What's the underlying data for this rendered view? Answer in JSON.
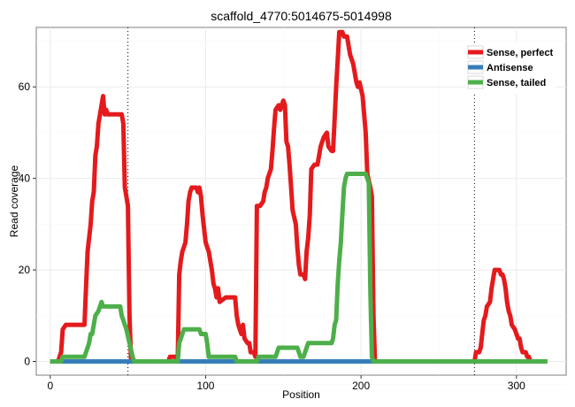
{
  "chart_data": {
    "type": "line",
    "title": "scaffold_4770:5014675-5014998",
    "xlabel": "Position",
    "ylabel": "Read coverage",
    "xlim": [
      -9,
      332
    ],
    "ylim": [
      -3,
      73
    ],
    "xticks": [
      0,
      100,
      200,
      300
    ],
    "yticks": [
      0,
      20,
      40,
      60
    ],
    "grid": true,
    "legend_position": "top-right",
    "vlines": [
      50,
      273
    ],
    "series": [
      {
        "name": "Sense, perfect",
        "color": "#e41a1c",
        "points": [
          [
            0,
            0
          ],
          [
            5,
            0
          ],
          [
            7,
            2
          ],
          [
            8,
            7
          ],
          [
            10,
            8
          ],
          [
            22,
            8
          ],
          [
            23,
            16
          ],
          [
            24,
            24
          ],
          [
            26,
            30
          ],
          [
            27,
            35
          ],
          [
            28,
            37
          ],
          [
            29,
            45
          ],
          [
            30,
            47
          ],
          [
            31,
            52
          ],
          [
            33,
            56
          ],
          [
            34,
            58
          ],
          [
            35,
            54
          ],
          [
            36,
            55
          ],
          [
            37,
            54
          ],
          [
            46,
            54
          ],
          [
            47,
            52
          ],
          [
            48,
            38
          ],
          [
            49,
            36
          ],
          [
            50,
            34
          ],
          [
            51,
            10
          ],
          [
            52,
            0
          ],
          [
            76,
            0
          ],
          [
            77,
            1
          ],
          [
            81,
            1
          ],
          [
            82,
            0
          ],
          [
            83,
            19
          ],
          [
            84,
            22
          ],
          [
            85,
            24
          ],
          [
            86,
            25
          ],
          [
            87,
            26
          ],
          [
            88,
            30
          ],
          [
            89,
            35
          ],
          [
            90,
            37
          ],
          [
            91,
            38
          ],
          [
            94,
            38
          ],
          [
            95,
            37
          ],
          [
            96,
            38
          ],
          [
            97,
            36
          ],
          [
            98,
            32
          ],
          [
            99,
            29
          ],
          [
            100,
            26
          ],
          [
            101,
            25
          ],
          [
            102,
            24
          ],
          [
            103,
            22
          ],
          [
            104,
            20
          ],
          [
            105,
            17
          ],
          [
            106,
            16
          ],
          [
            107,
            14
          ],
          [
            108,
            16
          ],
          [
            109,
            13
          ],
          [
            113,
            14
          ],
          [
            119,
            14
          ],
          [
            120,
            10
          ],
          [
            121,
            8
          ],
          [
            122,
            7
          ],
          [
            123,
            6
          ],
          [
            124,
            8
          ],
          [
            125,
            5
          ],
          [
            127,
            4
          ],
          [
            128,
            4
          ],
          [
            129,
            2
          ],
          [
            131,
            2
          ],
          [
            132,
            1
          ],
          [
            133,
            34
          ],
          [
            135,
            34
          ],
          [
            137,
            35
          ],
          [
            138,
            37
          ],
          [
            139,
            38
          ],
          [
            140,
            40
          ],
          [
            142,
            42
          ],
          [
            143,
            46
          ],
          [
            144,
            51
          ],
          [
            145,
            55
          ],
          [
            147,
            56
          ],
          [
            148,
            55
          ],
          [
            150,
            57
          ],
          [
            151,
            56
          ],
          [
            152,
            48
          ],
          [
            153,
            47
          ],
          [
            154,
            43
          ],
          [
            155,
            38
          ],
          [
            156,
            33
          ],
          [
            158,
            30
          ],
          [
            159,
            25
          ],
          [
            160,
            21
          ],
          [
            161,
            19
          ],
          [
            163,
            19
          ],
          [
            164,
            18
          ],
          [
            165,
            24
          ],
          [
            166,
            27
          ],
          [
            167,
            32
          ],
          [
            168,
            42
          ],
          [
            170,
            43
          ],
          [
            172,
            43
          ],
          [
            173,
            45
          ],
          [
            174,
            47
          ],
          [
            176,
            49
          ],
          [
            178,
            50
          ],
          [
            179,
            47
          ],
          [
            181,
            46
          ],
          [
            182,
            46
          ],
          [
            183,
            53
          ],
          [
            184,
            60
          ],
          [
            185,
            66
          ],
          [
            186,
            72
          ],
          [
            188,
            72
          ],
          [
            189,
            71
          ],
          [
            191,
            71
          ],
          [
            193,
            67
          ],
          [
            194,
            66
          ],
          [
            195,
            65
          ],
          [
            197,
            61
          ],
          [
            198,
            60
          ],
          [
            199,
            61
          ],
          [
            201,
            58
          ],
          [
            203,
            50
          ],
          [
            204,
            41
          ],
          [
            206,
            38
          ],
          [
            207,
            36
          ],
          [
            208,
            10
          ],
          [
            209,
            0
          ],
          [
            273,
            0
          ],
          [
            274,
            2
          ],
          [
            276,
            2
          ],
          [
            277,
            3
          ],
          [
            278,
            6
          ],
          [
            279,
            9
          ],
          [
            280,
            10
          ],
          [
            281,
            12
          ],
          [
            283,
            13
          ],
          [
            284,
            16
          ],
          [
            285,
            18
          ],
          [
            286,
            20
          ],
          [
            289,
            20
          ],
          [
            290,
            19
          ],
          [
            291,
            19
          ],
          [
            292,
            18
          ],
          [
            293,
            16
          ],
          [
            294,
            13
          ],
          [
            295,
            11
          ],
          [
            296,
            10
          ],
          [
            297,
            8
          ],
          [
            299,
            7
          ],
          [
            300,
            6
          ],
          [
            301,
            5
          ],
          [
            302,
            5
          ],
          [
            303,
            3
          ],
          [
            304,
            2
          ],
          [
            306,
            2
          ],
          [
            307,
            1
          ],
          [
            308,
            1
          ],
          [
            309,
            0
          ]
        ]
      },
      {
        "name": "Antisense",
        "color": "#377eb8",
        "points": [
          [
            0,
            0
          ],
          [
            225,
            0
          ]
        ]
      },
      {
        "name": "Sense, tailed",
        "color": "#4daf4a",
        "points": [
          [
            0,
            0
          ],
          [
            5,
            0
          ],
          [
            7,
            0
          ],
          [
            8,
            1
          ],
          [
            22,
            1
          ],
          [
            23,
            2
          ],
          [
            24,
            3
          ],
          [
            25,
            4
          ],
          [
            26,
            6
          ],
          [
            27,
            6
          ],
          [
            28,
            8
          ],
          [
            29,
            10
          ],
          [
            31,
            11
          ],
          [
            33,
            13
          ],
          [
            34,
            12
          ],
          [
            45,
            12
          ],
          [
            46,
            10
          ],
          [
            47,
            9
          ],
          [
            48,
            8
          ],
          [
            49,
            7
          ],
          [
            51,
            4
          ],
          [
            53,
            1
          ],
          [
            54,
            0
          ],
          [
            82,
            0
          ],
          [
            83,
            4
          ],
          [
            84,
            5
          ],
          [
            85,
            6
          ],
          [
            86,
            7
          ],
          [
            96,
            7
          ],
          [
            97,
            6
          ],
          [
            100,
            6
          ],
          [
            101,
            4
          ],
          [
            102,
            1
          ],
          [
            103,
            1
          ],
          [
            119,
            1
          ],
          [
            120,
            0
          ],
          [
            133,
            0
          ],
          [
            134,
            1
          ],
          [
            145,
            1
          ],
          [
            146,
            2
          ],
          [
            147,
            3
          ],
          [
            159,
            3
          ],
          [
            160,
            2
          ],
          [
            161,
            1
          ],
          [
            163,
            1
          ],
          [
            164,
            2
          ],
          [
            165,
            3
          ],
          [
            166,
            4
          ],
          [
            181,
            4
          ],
          [
            182,
            5
          ],
          [
            183,
            8
          ],
          [
            184,
            9
          ],
          [
            185,
            17
          ],
          [
            186,
            22
          ],
          [
            187,
            26
          ],
          [
            188,
            32
          ],
          [
            189,
            38
          ],
          [
            190,
            40
          ],
          [
            191,
            41
          ],
          [
            203,
            41
          ],
          [
            204,
            40
          ],
          [
            205,
            39
          ],
          [
            206,
            15
          ],
          [
            207,
            1
          ],
          [
            208,
            0
          ],
          [
            320,
            0
          ]
        ]
      }
    ]
  }
}
